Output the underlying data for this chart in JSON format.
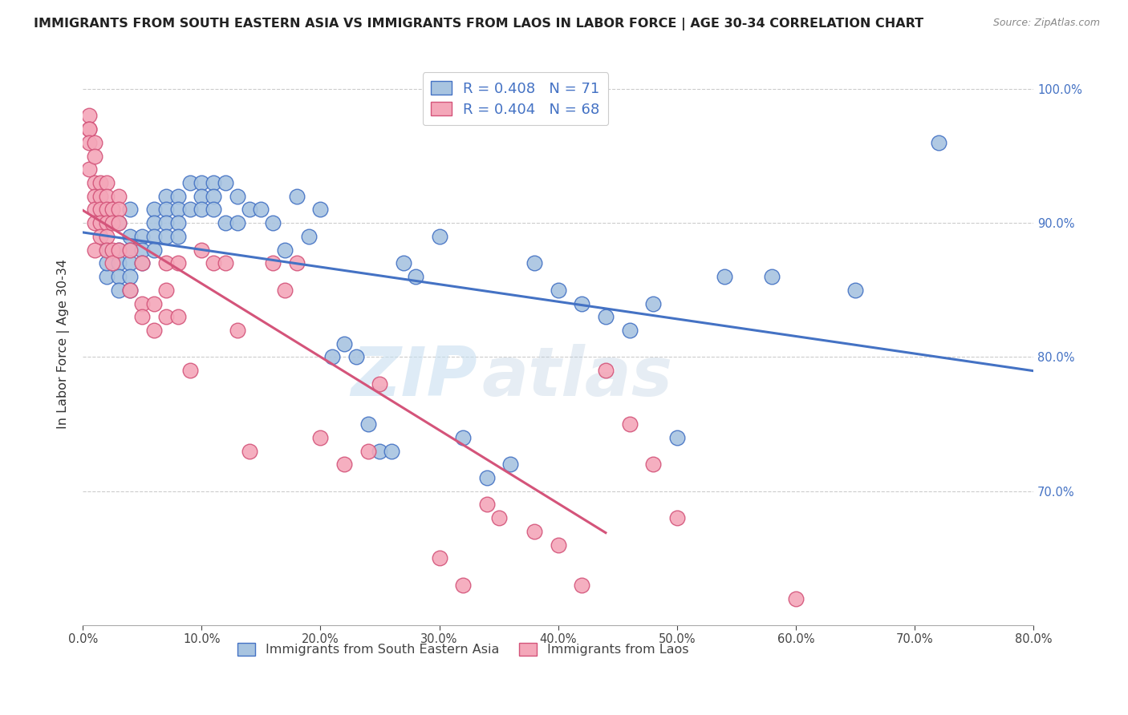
{
  "title": "IMMIGRANTS FROM SOUTH EASTERN ASIA VS IMMIGRANTS FROM LAOS IN LABOR FORCE | AGE 30-34 CORRELATION CHART",
  "source": "Source: ZipAtlas.com",
  "ylabel": "In Labor Force | Age 30-34",
  "x_range": [
    0.0,
    0.8
  ],
  "y_range": [
    0.6,
    1.02
  ],
  "blue_R": 0.408,
  "blue_N": 71,
  "pink_R": 0.404,
  "pink_N": 68,
  "blue_color": "#a8c4e0",
  "blue_line_color": "#4472c4",
  "pink_color": "#f4a7b9",
  "pink_line_color": "#d4547a",
  "watermark_zip": "ZIP",
  "watermark_atlas": "atlas",
  "blue_scatter_x": [
    0.02,
    0.02,
    0.02,
    0.03,
    0.03,
    0.03,
    0.03,
    0.03,
    0.04,
    0.04,
    0.04,
    0.04,
    0.04,
    0.04,
    0.05,
    0.05,
    0.05,
    0.06,
    0.06,
    0.06,
    0.06,
    0.07,
    0.07,
    0.07,
    0.07,
    0.08,
    0.08,
    0.08,
    0.08,
    0.09,
    0.09,
    0.1,
    0.1,
    0.1,
    0.11,
    0.11,
    0.11,
    0.12,
    0.12,
    0.13,
    0.13,
    0.14,
    0.15,
    0.16,
    0.17,
    0.18,
    0.19,
    0.2,
    0.21,
    0.22,
    0.23,
    0.24,
    0.25,
    0.26,
    0.27,
    0.28,
    0.3,
    0.32,
    0.34,
    0.36,
    0.38,
    0.4,
    0.42,
    0.44,
    0.46,
    0.48,
    0.5,
    0.54,
    0.58,
    0.65,
    0.72
  ],
  "blue_scatter_y": [
    0.86,
    0.88,
    0.87,
    0.9,
    0.88,
    0.87,
    0.86,
    0.85,
    0.91,
    0.89,
    0.88,
    0.87,
    0.86,
    0.85,
    0.89,
    0.88,
    0.87,
    0.91,
    0.9,
    0.89,
    0.88,
    0.92,
    0.91,
    0.9,
    0.89,
    0.92,
    0.91,
    0.9,
    0.89,
    0.93,
    0.91,
    0.93,
    0.92,
    0.91,
    0.93,
    0.92,
    0.91,
    0.93,
    0.9,
    0.92,
    0.9,
    0.91,
    0.91,
    0.9,
    0.88,
    0.92,
    0.89,
    0.91,
    0.8,
    0.81,
    0.8,
    0.75,
    0.73,
    0.73,
    0.87,
    0.86,
    0.89,
    0.74,
    0.71,
    0.72,
    0.87,
    0.85,
    0.84,
    0.83,
    0.82,
    0.84,
    0.74,
    0.86,
    0.86,
    0.85,
    0.96
  ],
  "pink_scatter_x": [
    0.005,
    0.005,
    0.005,
    0.005,
    0.005,
    0.01,
    0.01,
    0.01,
    0.01,
    0.01,
    0.01,
    0.01,
    0.015,
    0.015,
    0.015,
    0.015,
    0.015,
    0.02,
    0.02,
    0.02,
    0.02,
    0.02,
    0.02,
    0.025,
    0.025,
    0.025,
    0.025,
    0.03,
    0.03,
    0.03,
    0.03,
    0.04,
    0.04,
    0.05,
    0.05,
    0.05,
    0.06,
    0.06,
    0.07,
    0.07,
    0.07,
    0.08,
    0.08,
    0.09,
    0.1,
    0.11,
    0.12,
    0.13,
    0.14,
    0.16,
    0.17,
    0.18,
    0.2,
    0.22,
    0.24,
    0.25,
    0.3,
    0.32,
    0.34,
    0.35,
    0.38,
    0.4,
    0.42,
    0.44,
    0.46,
    0.48,
    0.5,
    0.6
  ],
  "pink_scatter_y": [
    0.98,
    0.97,
    0.97,
    0.96,
    0.94,
    0.96,
    0.95,
    0.93,
    0.92,
    0.91,
    0.9,
    0.88,
    0.93,
    0.92,
    0.91,
    0.9,
    0.89,
    0.93,
    0.92,
    0.91,
    0.9,
    0.89,
    0.88,
    0.91,
    0.9,
    0.88,
    0.87,
    0.92,
    0.91,
    0.9,
    0.88,
    0.88,
    0.85,
    0.87,
    0.84,
    0.83,
    0.84,
    0.82,
    0.87,
    0.85,
    0.83,
    0.87,
    0.83,
    0.79,
    0.88,
    0.87,
    0.87,
    0.82,
    0.73,
    0.87,
    0.85,
    0.87,
    0.74,
    0.72,
    0.73,
    0.78,
    0.65,
    0.63,
    0.69,
    0.68,
    0.67,
    0.66,
    0.63,
    0.79,
    0.75,
    0.72,
    0.68,
    0.62
  ]
}
